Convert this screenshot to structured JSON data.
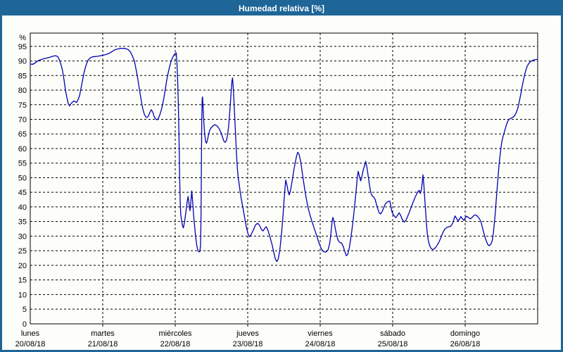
{
  "window": {
    "title": "Humedad relativa [%]",
    "header_bg": "#1e6598",
    "border_color": "#1e6598",
    "background": "#fdfdfa"
  },
  "chart_data": {
    "type": "line",
    "title": "Humedad relativa [%]",
    "xlabel": "",
    "ylabel": "%",
    "series_name": "Humedad relativa",
    "line_color": "#0000b4",
    "grid": "dashed",
    "grid_color": "#000000",
    "ylim": [
      0,
      99.5
    ],
    "y_ticks": [
      0,
      5,
      10,
      15,
      20,
      25,
      30,
      35,
      40,
      45,
      50,
      55,
      60,
      65,
      70,
      75,
      80,
      85,
      90,
      95
    ],
    "days": [
      {
        "name": "lunes",
        "date": "20/08/18"
      },
      {
        "name": "martes",
        "date": "21/08/18"
      },
      {
        "name": "miércoles",
        "date": "22/08/18"
      },
      {
        "name": "jueves",
        "date": "23/08/18"
      },
      {
        "name": "viernes",
        "date": "24/08/18"
      },
      {
        "name": "sábado",
        "date": "25/08/18"
      },
      {
        "name": "domingo",
        "date": "26/08/18"
      }
    ],
    "x_encoding": "points are [x_px, humidity_pct]; x_px 40 = lunes 20/08/18 00:00, 103 px per day, series ends at x_px 761 (end of domingo 26/08/18)",
    "points": [
      [
        40,
        89
      ],
      [
        43,
        88.8
      ],
      [
        47,
        89.3
      ],
      [
        52,
        90.2
      ],
      [
        57,
        90.6
      ],
      [
        62,
        90.9
      ],
      [
        67,
        91.2
      ],
      [
        72,
        91.6
      ],
      [
        76,
        91.8
      ],
      [
        79,
        91.5
      ],
      [
        81,
        90.6
      ],
      [
        84,
        88.5
      ],
      [
        86,
        86.5
      ],
      [
        88,
        83.5
      ],
      [
        90,
        80
      ],
      [
        92,
        77.5
      ],
      [
        94,
        75.3
      ],
      [
        96,
        74.6
      ],
      [
        98,
        75.4
      ],
      [
        100,
        75.9
      ],
      [
        102,
        76.3
      ],
      [
        104,
        76
      ],
      [
        106,
        75.8
      ],
      [
        108,
        76.8
      ],
      [
        110,
        78
      ],
      [
        112,
        80.5
      ],
      [
        114,
        83
      ],
      [
        116,
        85.5
      ],
      [
        118,
        87.5
      ],
      [
        120,
        89
      ],
      [
        122,
        90.2
      ],
      [
        125,
        91
      ],
      [
        128,
        91.4
      ],
      [
        132,
        91.5
      ],
      [
        136,
        91.6
      ],
      [
        140,
        91.8
      ],
      [
        144,
        92
      ],
      [
        148,
        92.2
      ],
      [
        152,
        92.6
      ],
      [
        156,
        93.2
      ],
      [
        160,
        93.8
      ],
      [
        164,
        94.1
      ],
      [
        168,
        94.3
      ],
      [
        172,
        94.3
      ],
      [
        176,
        94.2
      ],
      [
        179,
        93.9
      ],
      [
        182,
        93.2
      ],
      [
        185,
        91.8
      ],
      [
        188,
        90
      ],
      [
        190,
        87.5
      ],
      [
        192,
        85
      ],
      [
        194,
        82
      ],
      [
        196,
        79
      ],
      [
        198,
        76
      ],
      [
        200,
        73.5
      ],
      [
        202,
        71.8
      ],
      [
        204,
        70.9
      ],
      [
        206,
        70.6
      ],
      [
        208,
        71.2
      ],
      [
        210,
        72.4
      ],
      [
        212,
        73.3
      ],
      [
        214,
        72.5
      ],
      [
        216,
        71
      ],
      [
        218,
        70.2
      ],
      [
        220,
        69.8
      ],
      [
        222,
        70.3
      ],
      [
        224,
        71.5
      ],
      [
        226,
        73
      ],
      [
        228,
        75
      ],
      [
        230,
        77.5
      ],
      [
        232,
        80.5
      ],
      [
        234,
        83.5
      ],
      [
        236,
        86
      ],
      [
        238,
        88
      ],
      [
        240,
        89.8
      ],
      [
        242,
        91
      ],
      [
        244,
        92
      ],
      [
        246,
        92.6
      ],
      [
        247.5,
        92.8
      ],
      [
        248.5,
        89
      ],
      [
        249.5,
        83
      ],
      [
        250.5,
        74
      ],
      [
        251.5,
        62
      ],
      [
        252.3,
        50
      ],
      [
        253,
        42
      ],
      [
        253.8,
        37.5
      ],
      [
        255,
        35.5
      ],
      [
        256.3,
        33.6
      ],
      [
        257.5,
        32.8
      ],
      [
        259,
        34.5
      ],
      [
        261,
        38
      ],
      [
        263,
        41.8
      ],
      [
        264.3,
        43.6
      ],
      [
        265.6,
        41
      ],
      [
        267,
        38.7
      ],
      [
        268.3,
        42
      ],
      [
        269.5,
        45.5
      ],
      [
        270.7,
        42
      ],
      [
        272,
        37.5
      ],
      [
        273.5,
        33.5
      ],
      [
        275,
        29.8
      ],
      [
        276.5,
        27
      ],
      [
        278,
        25.2
      ],
      [
        279.5,
        24.6
      ],
      [
        281,
        24.8
      ],
      [
        282,
        27
      ],
      [
        282.7,
        38
      ],
      [
        283.2,
        55
      ],
      [
        283.7,
        70
      ],
      [
        284.3,
        77
      ],
      [
        284.8,
        77.7
      ],
      [
        285.5,
        74.5
      ],
      [
        286.3,
        70.5
      ],
      [
        287.2,
        67
      ],
      [
        288.2,
        64.2
      ],
      [
        289.2,
        62.4
      ],
      [
        290.3,
        61.8
      ],
      [
        291.7,
        62.8
      ],
      [
        293.2,
        64.6
      ],
      [
        295,
        66.3
      ],
      [
        297,
        67.1
      ],
      [
        299.5,
        67.7
      ],
      [
        302,
        68.2
      ],
      [
        304.5,
        67.9
      ],
      [
        307,
        67.3
      ],
      [
        309.5,
        66.3
      ],
      [
        311.3,
        65.3
      ],
      [
        313.2,
        63.9
      ],
      [
        315,
        62.6
      ],
      [
        317,
        62.1
      ],
      [
        318.8,
        62.8
      ],
      [
        320.5,
        64.8
      ],
      [
        322,
        68
      ],
      [
        323.3,
        72
      ],
      [
        324.5,
        76
      ],
      [
        325.6,
        80
      ],
      [
        326.6,
        83
      ],
      [
        327.4,
        84.2
      ],
      [
        328.3,
        81.5
      ],
      [
        329.2,
        77.5
      ],
      [
        330.2,
        72.5
      ],
      [
        331.2,
        67.5
      ],
      [
        332.2,
        62.5
      ],
      [
        333.2,
        57.5
      ],
      [
        334.2,
        53.5
      ],
      [
        335.4,
        50.3
      ],
      [
        336.6,
        48.2
      ],
      [
        338,
        45.7
      ],
      [
        339.5,
        43.2
      ],
      [
        341.5,
        40.6
      ],
      [
        343.5,
        37.9
      ],
      [
        345.5,
        35.1
      ],
      [
        347.5,
        32.6
      ],
      [
        349.5,
        30.7
      ],
      [
        351.5,
        29.8
      ],
      [
        354,
        30.6
      ],
      [
        357,
        32.1
      ],
      [
        360,
        33.8
      ],
      [
        363,
        34.4
      ],
      [
        366,
        33.6
      ],
      [
        368.5,
        32.2
      ],
      [
        371,
        31.8
      ],
      [
        373.5,
        32.8
      ],
      [
        375.5,
        33.2
      ],
      [
        378,
        31.8
      ],
      [
        381,
        29.4
      ],
      [
        384,
        26.7
      ],
      [
        386.5,
        23.9
      ],
      [
        388.5,
        22
      ],
      [
        390.5,
        21.3
      ],
      [
        392.5,
        22.3
      ],
      [
        394.5,
        25
      ],
      [
        396.5,
        29.5
      ],
      [
        398.5,
        35
      ],
      [
        400.3,
        41
      ],
      [
        401.8,
        46
      ],
      [
        403,
        49.2
      ],
      [
        404.8,
        47.4
      ],
      [
        406.5,
        45.2
      ],
      [
        408,
        44.1
      ],
      [
        409.8,
        45.6
      ],
      [
        411.5,
        48
      ],
      [
        413.3,
        50.8
      ],
      [
        415,
        53.3
      ],
      [
        416.8,
        55.5
      ],
      [
        418.3,
        57.3
      ],
      [
        420,
        58.7
      ],
      [
        421.8,
        58.1
      ],
      [
        423.5,
        56.4
      ],
      [
        425.3,
        53.9
      ],
      [
        427,
        50.8
      ],
      [
        428.5,
        48.5
      ],
      [
        430,
        46
      ],
      [
        431.8,
        43.5
      ],
      [
        433.5,
        41.2
      ],
      [
        435.5,
        39
      ],
      [
        437.8,
        37
      ],
      [
        440,
        35.2
      ],
      [
        442.5,
        33.4
      ],
      [
        445,
        31.6
      ],
      [
        447.5,
        29.8
      ],
      [
        449.8,
        28
      ],
      [
        452,
        26.6
      ],
      [
        454.5,
        25.3
      ],
      [
        457,
        24.7
      ],
      [
        460,
        24.5
      ],
      [
        463,
        25.2
      ],
      [
        465.5,
        27.5
      ],
      [
        467.3,
        31
      ],
      [
        468.8,
        34.8
      ],
      [
        470,
        36.4
      ],
      [
        471.8,
        34.8
      ],
      [
        473.5,
        32.5
      ],
      [
        475.5,
        30.2
      ],
      [
        477.5,
        28.5
      ],
      [
        480,
        27.8
      ],
      [
        482.5,
        27.6
      ],
      [
        484.8,
        26.4
      ],
      [
        487,
        24.7
      ],
      [
        489,
        23.3
      ],
      [
        491,
        23.7
      ],
      [
        493,
        25.5
      ],
      [
        495,
        28.5
      ],
      [
        497,
        32
      ],
      [
        499,
        36
      ],
      [
        501,
        40.5
      ],
      [
        503,
        45.5
      ],
      [
        504.7,
        50
      ],
      [
        506,
        52.2
      ],
      [
        507.8,
        50.4
      ],
      [
        509.5,
        48.9
      ],
      [
        511.3,
        50.5
      ],
      [
        513,
        52.5
      ],
      [
        514.8,
        54
      ],
      [
        516.7,
        55.6
      ],
      [
        518.5,
        53.4
      ],
      [
        520.3,
        50.4
      ],
      [
        522,
        47.5
      ],
      [
        523.8,
        45
      ],
      [
        525.8,
        43.8
      ],
      [
        528,
        43.4
      ],
      [
        530,
        42.6
      ],
      [
        531.8,
        41
      ],
      [
        533.8,
        39.3
      ],
      [
        535.8,
        38
      ],
      [
        537.8,
        37.6
      ],
      [
        540,
        38.4
      ],
      [
        542,
        39.6
      ],
      [
        544,
        40.8
      ],
      [
        546.3,
        41.5
      ],
      [
        548.8,
        41.9
      ],
      [
        551,
        42
      ],
      [
        552.5,
        40
      ],
      [
        554,
        38.3
      ],
      [
        555.5,
        37.6
      ],
      [
        557.5,
        36.8
      ],
      [
        559.5,
        36.3
      ],
      [
        562,
        37.2
      ],
      [
        564.3,
        38
      ],
      [
        566.5,
        37
      ],
      [
        568.8,
        35.6
      ],
      [
        571.3,
        34.8
      ],
      [
        573.8,
        35.4
      ],
      [
        576.3,
        36.8
      ],
      [
        578.8,
        38.3
      ],
      [
        581.3,
        39.9
      ],
      [
        583.8,
        41.5
      ],
      [
        586.3,
        43
      ],
      [
        588.8,
        44.3
      ],
      [
        591,
        45.3
      ],
      [
        592.8,
        45.7
      ],
      [
        594.3,
        44.6
      ],
      [
        595.8,
        45.9
      ],
      [
        597,
        48.5
      ],
      [
        598,
        51
      ],
      [
        599.3,
        47.5
      ],
      [
        600.5,
        43
      ],
      [
        601.8,
        38.5
      ],
      [
        603,
        34
      ],
      [
        604.3,
        30.5
      ],
      [
        605.8,
        28.3
      ],
      [
        607.5,
        26.8
      ],
      [
        609.5,
        25.8
      ],
      [
        611.8,
        25.4
      ],
      [
        614,
        25.6
      ],
      [
        616.3,
        26.2
      ],
      [
        618.5,
        27
      ],
      [
        620.8,
        28
      ],
      [
        623,
        29.2
      ],
      [
        625.3,
        30.6
      ],
      [
        627.5,
        31.8
      ],
      [
        629.8,
        32.6
      ],
      [
        632.3,
        33
      ],
      [
        635,
        33.2
      ],
      [
        637.5,
        33.4
      ],
      [
        639.8,
        34.2
      ],
      [
        641.8,
        35.6
      ],
      [
        643.5,
        36.9
      ],
      [
        645.5,
        36.2
      ],
      [
        647.8,
        35.2
      ],
      [
        650,
        35.8
      ],
      [
        652,
        36.7
      ],
      [
        654,
        36
      ],
      [
        656,
        35.4
      ],
      [
        658,
        36.2
      ],
      [
        660,
        36.8
      ],
      [
        662.5,
        36.4
      ],
      [
        665,
        35.9
      ],
      [
        667.5,
        36.3
      ],
      [
        670,
        37
      ],
      [
        672.5,
        37.3
      ],
      [
        675,
        36.9
      ],
      [
        677.5,
        36.2
      ],
      [
        680,
        35.2
      ],
      [
        682,
        33.5
      ],
      [
        684,
        31.5
      ],
      [
        686,
        29.8
      ],
      [
        688,
        28.3
      ],
      [
        690,
        27.2
      ],
      [
        692,
        26.7
      ],
      [
        694.5,
        27.2
      ],
      [
        696.5,
        28.5
      ],
      [
        698,
        31
      ],
      [
        699.5,
        34.5
      ],
      [
        700.8,
        38
      ],
      [
        702,
        42
      ],
      [
        703.3,
        46
      ],
      [
        704.7,
        50
      ],
      [
        705.8,
        53.5
      ],
      [
        707,
        56.5
      ],
      [
        708.5,
        59.5
      ],
      [
        710,
        62.3
      ],
      [
        712,
        64.3
      ],
      [
        714.3,
        66.2
      ],
      [
        716.5,
        68
      ],
      [
        718.5,
        69.4
      ],
      [
        720.8,
        70.1
      ],
      [
        723.3,
        70.4
      ],
      [
        725.8,
        70.7
      ],
      [
        728,
        71.2
      ],
      [
        730,
        72
      ],
      [
        732,
        73.2
      ],
      [
        733.8,
        74.8
      ],
      [
        735.5,
        76.8
      ],
      [
        737.3,
        79
      ],
      [
        739,
        81.3
      ],
      [
        740.8,
        83.4
      ],
      [
        742.5,
        85.3
      ],
      [
        744.3,
        86.9
      ],
      [
        746,
        88.1
      ],
      [
        748,
        89
      ],
      [
        750,
        89.6
      ],
      [
        752.3,
        90
      ],
      [
        754.8,
        90.3
      ],
      [
        757,
        90.4
      ],
      [
        759,
        90.5
      ],
      [
        761,
        90.5
      ]
    ]
  }
}
